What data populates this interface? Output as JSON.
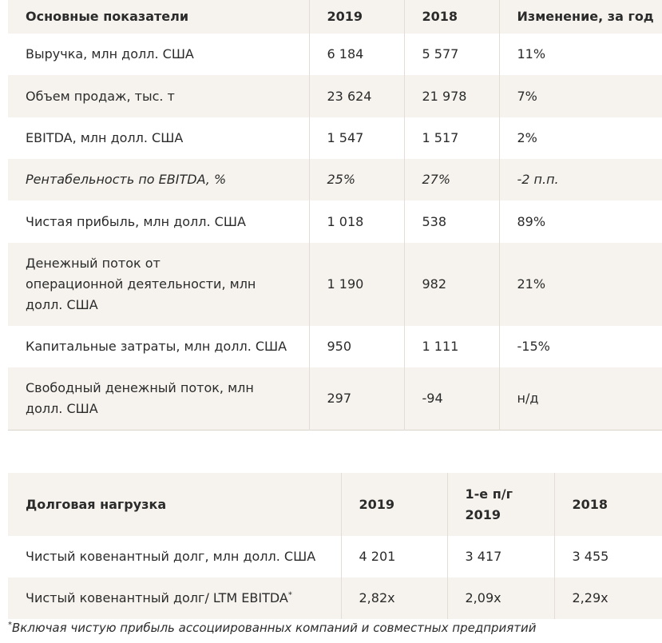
{
  "table1": {
    "headers": [
      "Основные показатели",
      "2019",
      "2018",
      "Изменение, за год"
    ],
    "rows": [
      [
        "Выручка, млн долл. США",
        "6 184",
        "5 577",
        "11%"
      ],
      [
        "Объем продаж, тыс. т",
        "23 624",
        "21 978",
        "7%"
      ],
      [
        "EBITDA, млн долл. США",
        "1 547",
        "1 517",
        "2%"
      ],
      [
        "Рентабельность по EBITDA, %",
        "25%",
        "27%",
        "-2 п.п."
      ],
      [
        "Чистая прибыль, млн долл. США",
        "1 018",
        "538",
        "89%"
      ],
      [
        "Денежный поток от операционной деятельности, млн долл. США",
        "1 190",
        "982",
        "21%"
      ],
      [
        "Капитальные затраты, млн долл. США",
        "950",
        "1 111",
        "-15%"
      ],
      [
        "Свободный денежный поток, млн долл. США",
        "297",
        "-94",
        "н/д"
      ]
    ]
  },
  "table2": {
    "headers": [
      "Долговая нагрузка",
      "2019",
      "1-е п/г 2019",
      "2018"
    ],
    "rows": [
      [
        "Чистый ковенантный долг, млн долл. США",
        "4 201",
        "3 417",
        "3 455"
      ],
      [
        "Чистый ковенантный долг/ LTM EBITDA",
        "2,82x",
        "2,09x",
        "2,29x"
      ]
    ],
    "row2_marker": "*"
  },
  "footnote": {
    "marker": "*",
    "text": "Включая чистую прибыль ассоциированных компаний и совместных предприятий"
  }
}
